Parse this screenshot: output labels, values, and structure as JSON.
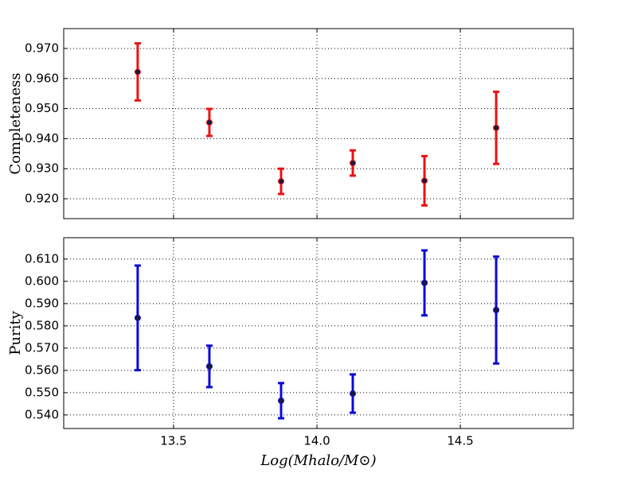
{
  "chart_data": [
    {
      "type": "errorbar",
      "ylabel": "Completeness",
      "color": "#ee1111",
      "grid": true,
      "x": [
        13.375,
        13.625,
        13.875,
        14.125,
        14.375,
        14.625
      ],
      "values": [
        0.9622,
        0.9454,
        0.9258,
        0.9319,
        0.926,
        0.9436
      ],
      "errors": [
        0.0095,
        0.0045,
        0.0042,
        0.0042,
        0.0082,
        0.012
      ],
      "xlim": [
        13.117,
        14.894
      ],
      "xticks": [
        13.5,
        {
          "value": 14,
          "label": "14.0"
        },
        14.5
      ],
      "ylim": [
        0.9134,
        0.9766
      ],
      "yticks": [
        {
          "value": 0.92,
          "label": "0.920"
        },
        {
          "value": 0.93,
          "label": "0.930"
        },
        {
          "value": 0.94,
          "label": "0.940"
        },
        {
          "value": 0.95,
          "label": "0.950"
        },
        {
          "value": 0.96,
          "label": "0.960"
        },
        {
          "value": 0.97,
          "label": "0.970"
        }
      ]
    },
    {
      "type": "errorbar",
      "ylabel": "Purity",
      "xlabel": "Log(Mhalo/M⊙)",
      "color": "#0a0ad8",
      "grid": true,
      "x": [
        13.375,
        13.625,
        13.875,
        14.125,
        14.375,
        14.625
      ],
      "values": [
        0.5836,
        0.5618,
        0.5464,
        0.5496,
        0.5993,
        0.5871
      ],
      "errors": [
        0.0235,
        0.0093,
        0.0079,
        0.0086,
        0.0146,
        0.024
      ],
      "xlim": [
        13.117,
        14.894
      ],
      "xticks": [
        13.5,
        {
          "value": 14,
          "label": "14.0"
        },
        14.5
      ],
      "ylim": [
        0.5339,
        0.6196
      ],
      "yticks": [
        {
          "value": 0.54,
          "label": "0.540"
        },
        {
          "value": 0.55,
          "label": "0.550"
        },
        {
          "value": 0.56,
          "label": "0.560"
        },
        {
          "value": 0.57,
          "label": "0.570"
        },
        {
          "value": 0.58,
          "label": "0.580"
        },
        {
          "value": 0.59,
          "label": "0.590"
        },
        {
          "value": 0.6,
          "label": "0.600"
        },
        {
          "value": 0.61,
          "label": "0.610"
        }
      ]
    }
  ]
}
